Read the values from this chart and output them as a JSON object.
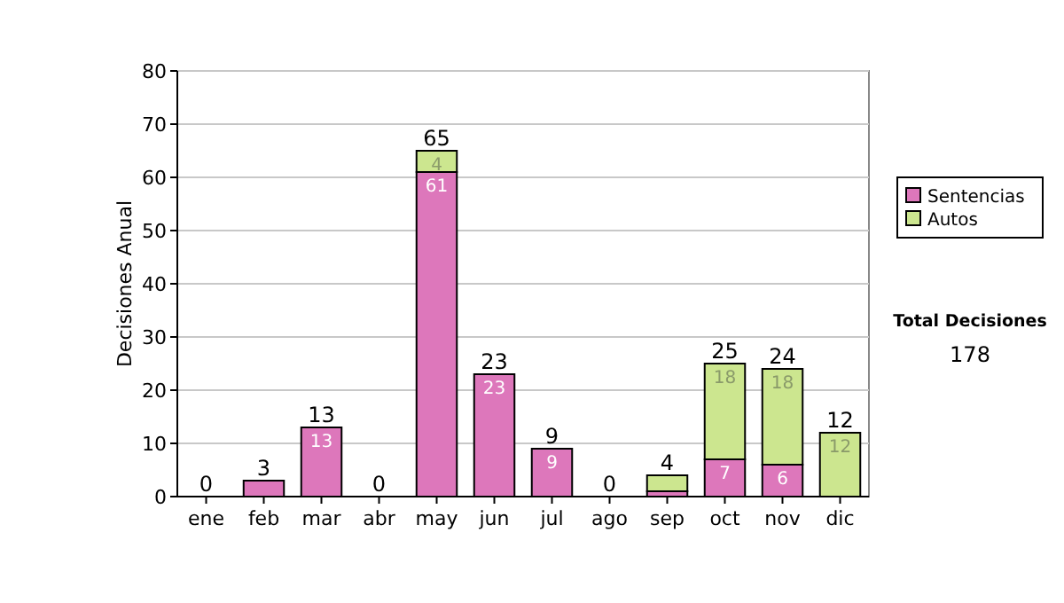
{
  "chart_data": {
    "type": "bar",
    "ylabel": "Decisiones Anual",
    "categories": [
      "ene",
      "feb",
      "mar",
      "abr",
      "may",
      "jun",
      "jul",
      "ago",
      "sep",
      "oct",
      "nov",
      "dic"
    ],
    "series": [
      {
        "name": "Sentencias",
        "color": "#dd77bb",
        "values": [
          0,
          3,
          13,
          0,
          61,
          23,
          9,
          0,
          1,
          7,
          6,
          0
        ],
        "value_labels": [
          null,
          null,
          "13",
          null,
          "61",
          "23",
          "9",
          null,
          null,
          "7",
          "6",
          null
        ]
      },
      {
        "name": "Autos",
        "color": "#cce68f",
        "values": [
          0,
          0,
          0,
          0,
          4,
          0,
          0,
          0,
          3,
          18,
          18,
          12
        ],
        "value_labels": [
          null,
          null,
          null,
          null,
          "4",
          null,
          null,
          null,
          null,
          "18",
          "18",
          "12"
        ]
      }
    ],
    "stacked": true,
    "totals": [
      "0",
      "3",
      "13",
      "0",
      "65",
      "23",
      "9",
      "0",
      "4",
      "25",
      "24",
      "12"
    ],
    "ylim": [
      0,
      80
    ],
    "yticks": [
      0,
      10,
      20,
      30,
      40,
      50,
      60,
      70,
      80
    ],
    "grid": "y",
    "legend": "right",
    "annotations": [
      "Total Decisiones",
      "178"
    ]
  }
}
